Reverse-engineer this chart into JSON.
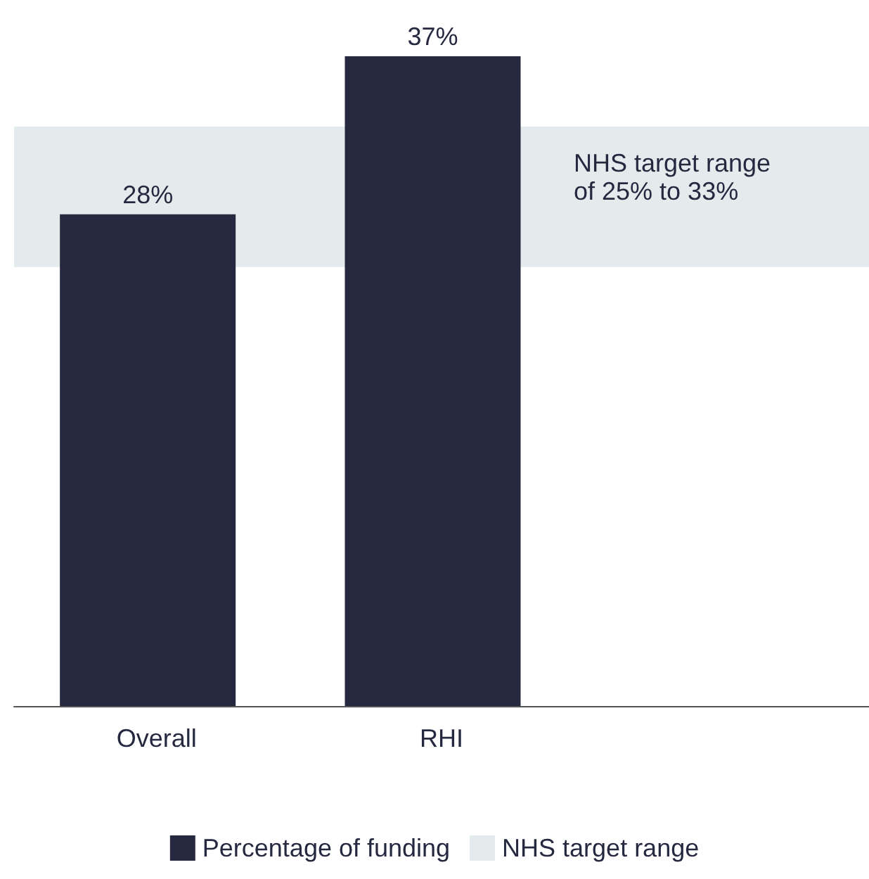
{
  "chart_data": {
    "type": "bar",
    "categories": [
      "Overall",
      "RHI"
    ],
    "series": [
      {
        "name": "Percentage of funding",
        "color": "#262840",
        "values": [
          28,
          37
        ],
        "value_labels": [
          "28%",
          "37%"
        ]
      }
    ],
    "bands": [
      {
        "axis": "y",
        "from": 25,
        "to": 33,
        "label": "NHS target range",
        "color": "#e4ebec"
      }
    ],
    "annotations": [
      "NHS target range\nof 25% to 33%"
    ],
    "legend": "bottom",
    "grid": false
  }
}
